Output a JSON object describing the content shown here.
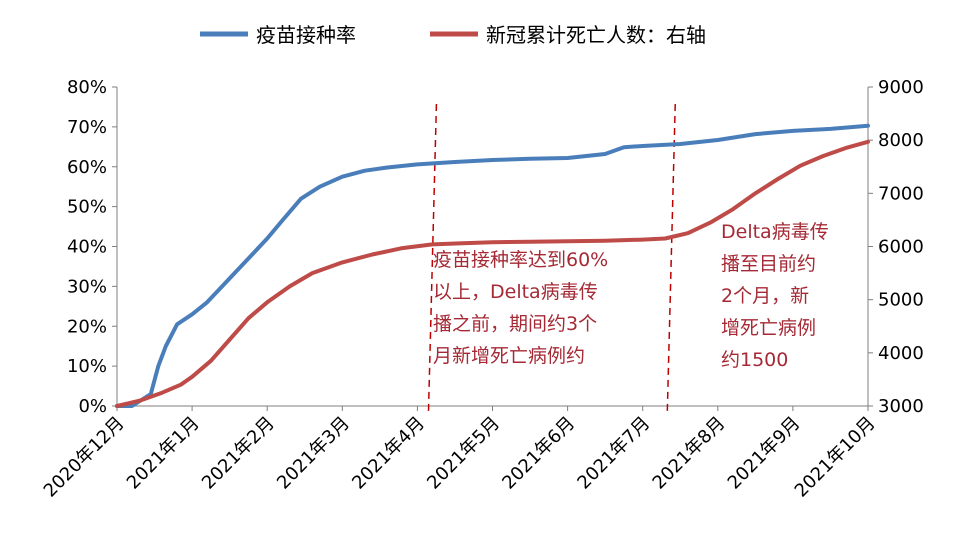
{
  "chart_data": {
    "type": "line",
    "title": "",
    "xlabel": "",
    "ylabel": "",
    "y2label": "",
    "categories": [
      "2020年12月",
      "2021年1月",
      "2021年2月",
      "2021年3月",
      "2021年4月",
      "2021年5月",
      "2021年6月",
      "2021年7月",
      "2021年8月",
      "2021年9月",
      "2021年10月"
    ],
    "ylim": [
      0,
      0.8
    ],
    "y_ticks": [
      "0%",
      "10%",
      "20%",
      "30%",
      "40%",
      "50%",
      "60%",
      "70%",
      "80%"
    ],
    "y2lim": [
      3000,
      9000
    ],
    "y2_ticks": [
      "3000",
      "4000",
      "5000",
      "6000",
      "7000",
      "8000",
      "9000"
    ],
    "legend_position": "top",
    "grid": false,
    "series": [
      {
        "name": "疫苗接种率",
        "axis": "left",
        "color": "#4a7ebb",
        "points": [
          [
            0,
            0
          ],
          [
            0.2,
            0
          ],
          [
            0.45,
            0.03
          ],
          [
            0.55,
            0.1
          ],
          [
            0.65,
            0.15
          ],
          [
            0.8,
            0.205
          ],
          [
            1,
            0.23
          ],
          [
            1.2,
            0.26
          ],
          [
            1.4,
            0.3
          ],
          [
            1.6,
            0.34
          ],
          [
            1.8,
            0.38
          ],
          [
            2,
            0.42
          ],
          [
            2.2,
            0.465
          ],
          [
            2.45,
            0.52
          ],
          [
            2.7,
            0.55
          ],
          [
            3,
            0.575
          ],
          [
            3.3,
            0.59
          ],
          [
            3.6,
            0.598
          ],
          [
            4,
            0.606
          ],
          [
            4.5,
            0.612
          ],
          [
            5,
            0.617
          ],
          [
            5.5,
            0.62
          ],
          [
            6,
            0.622
          ],
          [
            6.5,
            0.632
          ],
          [
            6.75,
            0.649
          ],
          [
            7,
            0.652
          ],
          [
            7.5,
            0.657
          ],
          [
            8,
            0.667
          ],
          [
            8.5,
            0.682
          ],
          [
            9,
            0.69
          ],
          [
            9.5,
            0.695
          ],
          [
            10,
            0.703
          ]
        ]
      },
      {
        "name": "新冠累计死亡人数：右轴",
        "axis": "right",
        "color": "#be4b48",
        "points": [
          [
            0,
            3000
          ],
          [
            0.3,
            3100
          ],
          [
            0.6,
            3250
          ],
          [
            0.85,
            3400
          ],
          [
            1,
            3550
          ],
          [
            1.25,
            3850
          ],
          [
            1.5,
            4250
          ],
          [
            1.75,
            4650
          ],
          [
            2,
            4950
          ],
          [
            2.3,
            5250
          ],
          [
            2.6,
            5500
          ],
          [
            3,
            5700
          ],
          [
            3.4,
            5850
          ],
          [
            3.8,
            5970
          ],
          [
            4.2,
            6040
          ],
          [
            4.6,
            6060
          ],
          [
            5,
            6080
          ],
          [
            5.5,
            6090
          ],
          [
            6,
            6100
          ],
          [
            6.5,
            6110
          ],
          [
            7,
            6130
          ],
          [
            7.3,
            6150
          ],
          [
            7.6,
            6250
          ],
          [
            7.9,
            6450
          ],
          [
            8.2,
            6700
          ],
          [
            8.5,
            7000
          ],
          [
            8.8,
            7270
          ],
          [
            9.1,
            7520
          ],
          [
            9.4,
            7700
          ],
          [
            9.7,
            7850
          ],
          [
            10,
            7970
          ]
        ]
      }
    ],
    "reference_lines": [
      4.2,
      7.38
    ],
    "annotations": [
      {
        "id": "a1",
        "lines": [
          "疫苗接种率达到60%",
          "以上，Delta病毒传",
          "播之前，期间约3个",
          "月新增死亡病例约"
        ]
      },
      {
        "id": "a2",
        "lines": [
          "Delta病毒传",
          "播至目前约",
          "2个月，新",
          "增死亡病例",
          "约1500"
        ]
      }
    ]
  }
}
